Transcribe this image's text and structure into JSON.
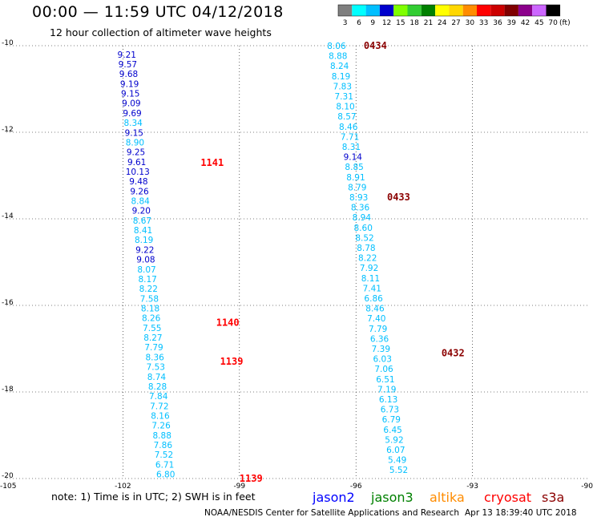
{
  "header": {
    "title": "00:00 — 11:59 UTC 04/12/2018",
    "subtitle": "12 hour collection of altimeter wave heights"
  },
  "scale": {
    "labels": [
      "3",
      "6",
      "9",
      "12",
      "15",
      "18",
      "21",
      "24",
      "27",
      "30",
      "33",
      "36",
      "39",
      "42",
      "45",
      "70",
      "(ft)"
    ],
    "colors": [
      "#7f7f7f",
      "#00ffff",
      "#00bfff",
      "#0000cd",
      "#7fff00",
      "#32cd32",
      "#008000",
      "#ffff00",
      "#ffd700",
      "#ff8c00",
      "#ff0000",
      "#cc0000",
      "#800000",
      "#8b008b",
      "#cc66ff",
      "#000000"
    ]
  },
  "footer": {
    "note": "note: 1) Time is in UTC; 2) SWH is in feet",
    "legend": [
      {
        "name": "jason2",
        "color": "#0000ff"
      },
      {
        "name": "jason3",
        "color": "#008000"
      },
      {
        "name": "altika",
        "color": "#ff8c00"
      },
      {
        "name": "cryosat",
        "color": "#ff0000"
      },
      {
        "name": "s3a",
        "color": "#8b0000"
      }
    ],
    "credit": "NOAA/NESDIS Center for Satellite Applications and Research",
    "timestamp": "Apr 13 18:39:40 UTC 2018"
  },
  "chart_data": {
    "type": "scatter",
    "x_ticks": [
      "-105",
      "-102",
      "-99",
      "-96",
      "-93",
      "-90"
    ],
    "y_ticks": [
      "-10",
      "-12",
      "-14",
      "-16",
      "-18",
      "-20"
    ],
    "xlim": [
      -105,
      -90
    ],
    "ylim": [
      -20,
      -10
    ],
    "grid": true,
    "series": [
      {
        "name": "cryosat",
        "color": "#ff0000",
        "tracks": [
          {
            "x_start": -101.9,
            "x_end": -100.9,
            "y_start": -10.2,
            "y_end": -19.9,
            "values": [
              "9.21",
              "9.57",
              "9.68",
              "9.19",
              "9.15",
              "9.09",
              "9.69",
              "8.34",
              "9.15",
              "8.90",
              "9.25",
              "9.61",
              "10.13",
              "9.48",
              "9.26",
              "8.84",
              "9.20",
              "8.67",
              "8.41",
              "8.19",
              "9.22",
              "9.08",
              "8.07",
              "8.17",
              "8.22",
              "7.58",
              "8.18",
              "8.26",
              "7.55",
              "8.27",
              "7.79",
              "8.36",
              "7.53",
              "8.74",
              "8.28",
              "7.84",
              "7.72",
              "8.16",
              "7.26",
              "8.88",
              "7.86",
              "7.52",
              "6.71",
              "6.80"
            ],
            "colors": [
              "#0000cd",
              "#0000cd",
              "#0000cd",
              "#0000cd",
              "#0000cd",
              "#0000cd",
              "#0000cd",
              "#00bfff",
              "#0000cd",
              "#00bfff",
              "#0000cd",
              "#0000cd",
              "#0000cd",
              "#0000cd",
              "#0000cd",
              "#00bfff",
              "#0000cd",
              "#00bfff",
              "#00bfff",
              "#00bfff",
              "#0000cd",
              "#0000cd",
              "#00bfff",
              "#00bfff",
              "#00bfff",
              "#00bfff",
              "#00bfff",
              "#00bfff",
              "#00bfff",
              "#00bfff",
              "#00bfff",
              "#00bfff",
              "#00bfff",
              "#00bfff",
              "#00bfff",
              "#00bfff",
              "#00bfff",
              "#00bfff",
              "#00bfff",
              "#00bfff",
              "#00bfff",
              "#00bfff",
              "#00bfff",
              "#00bfff"
            ]
          }
        ],
        "time_labels": [
          {
            "text": "1141",
            "x": -100.0,
            "y": -12.7
          },
          {
            "text": "1140",
            "x": -99.6,
            "y": -16.4
          },
          {
            "text": "1139",
            "x": -99.5,
            "y": -17.3
          },
          {
            "text": "1139",
            "x": -99.0,
            "y": -20.0
          }
        ]
      },
      {
        "name": "s3a",
        "color": "#8b0000",
        "tracks": [
          {
            "x_start": -96.5,
            "x_end": -94.9,
            "y_start": -10.0,
            "y_end": -19.8,
            "values": [
              "8.06",
              "8.88",
              "8.24",
              "8.19",
              "7.83",
              "7.31",
              "8.10",
              "8.57",
              "8.46",
              "7.71",
              "8.31",
              "9.14",
              "8.85",
              "8.91",
              "8.79",
              "8.93",
              "8.36",
              "8.94",
              "8.60",
              "8.52",
              "8.78",
              "8.22",
              "7.92",
              "8.11",
              "7.41",
              "6.86",
              "8.46",
              "7.40",
              "7.79",
              "6.36",
              "7.39",
              "6.03",
              "7.06",
              "6.51",
              "7.19",
              "6.13",
              "6.73",
              "6.79",
              "6.45",
              "5.92",
              "6.07",
              "5.49",
              "5.52"
            ],
            "colors": [
              "#00bfff",
              "#00bfff",
              "#00bfff",
              "#00bfff",
              "#00bfff",
              "#00bfff",
              "#00bfff",
              "#00bfff",
              "#00bfff",
              "#00bfff",
              "#00bfff",
              "#0000cd",
              "#00bfff",
              "#00bfff",
              "#00bfff",
              "#00bfff",
              "#00bfff",
              "#00bfff",
              "#00bfff",
              "#00bfff",
              "#00bfff",
              "#00bfff",
              "#00bfff",
              "#00bfff",
              "#00bfff",
              "#00bfff",
              "#00bfff",
              "#00bfff",
              "#00bfff",
              "#00bfff",
              "#00bfff",
              "#00bfff",
              "#00bfff",
              "#00bfff",
              "#00bfff",
              "#00bfff",
              "#00bfff",
              "#00bfff",
              "#00bfff",
              "#00bfff",
              "#00bfff",
              "#00bfff",
              "#00bfff"
            ]
          }
        ],
        "time_labels": [
          {
            "text": "0434",
            "x": -95.8,
            "y": -10.0
          },
          {
            "text": "0433",
            "x": -95.2,
            "y": -13.5
          },
          {
            "text": "0432",
            "x": -93.8,
            "y": -17.1
          }
        ]
      }
    ]
  }
}
